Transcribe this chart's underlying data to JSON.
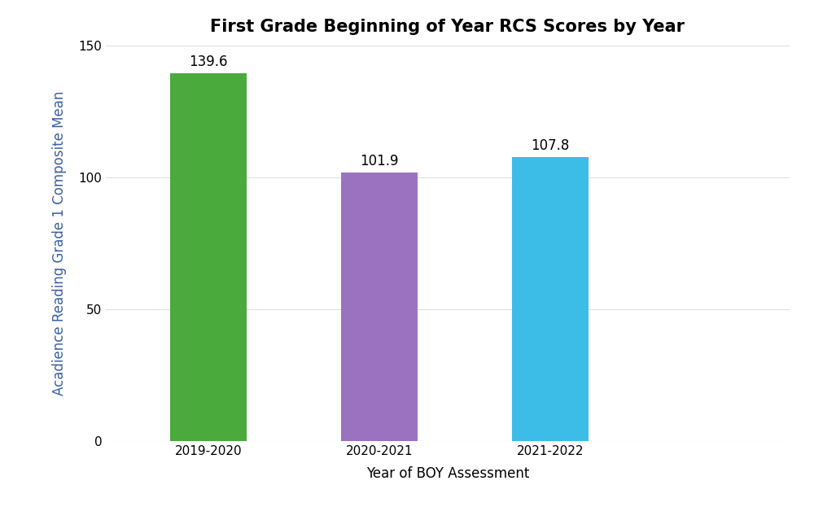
{
  "title": "First Grade Beginning of Year RCS Scores by Year",
  "categories": [
    "2019-2020",
    "2020-2021",
    "2021-2022"
  ],
  "values": [
    139.6,
    101.9,
    107.8
  ],
  "bar_colors": [
    "#4aaa3c",
    "#9b72c0",
    "#3bbde8"
  ],
  "xlabel": "Year of BOY Assessment",
  "ylabel": "Acadience Reading Grade 1 Composite Mean",
  "ylim": [
    0,
    150
  ],
  "yticks": [
    0,
    50,
    100,
    150
  ],
  "background_color": "#ffffff",
  "plot_bg_color": "#ffffff",
  "grid_color": "#e0e0e0",
  "title_fontsize": 15,
  "label_fontsize": 12,
  "tick_fontsize": 11,
  "value_fontsize": 12,
  "bar_width": 0.45,
  "ylabel_color": "#3a5fa0"
}
